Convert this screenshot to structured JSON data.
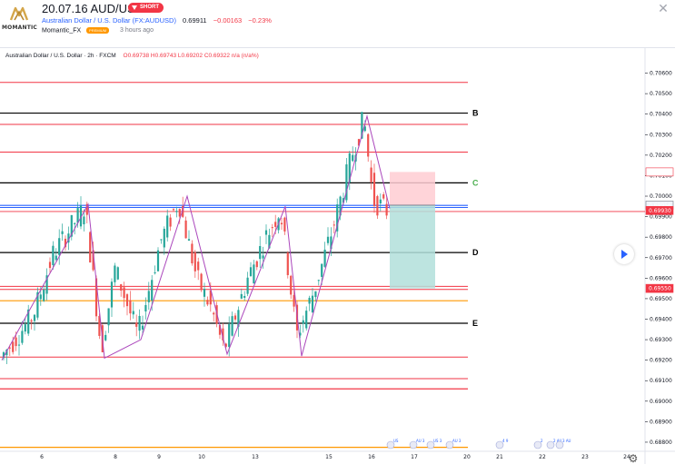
{
  "header": {
    "logo_text": "MOMANTIC",
    "title_date": "20.07.16",
    "title_symbol": "AUD/USD",
    "badge": "SHORT",
    "symbol_link": "Australian Dollar / U.S. Dollar (FX:AUDUSD)",
    "last_price": "0.69911",
    "change": "−0.00163",
    "change_pct": "−0.23%",
    "author": "Momantic_FX",
    "author_badge": "PREMIUM",
    "time_ago": "3 hours ago",
    "close_icon": "close-icon"
  },
  "chart": {
    "legend_title": "Australian Dollar / U.S. Dollar · 2h · FXCM",
    "legend_ohlc": "O0.69738  H0.69743  L0.69202  C0.69322  n/a (n/a%)",
    "colors": {
      "up": "#26a69a",
      "down": "#ef5350",
      "zigzag": "#ab47bc",
      "red_line": "#f23645",
      "orange_line": "#ff9800",
      "blue_line": "#2962ff",
      "black_line": "#000000",
      "level_c": "#4caf50",
      "target_fill": "#b2dfdb",
      "stop_fill": "#ffcdd2"
    },
    "price_axis": [
      "0.70600",
      "0.70500",
      "0.70400",
      "0.70300",
      "0.70200",
      "0.70100",
      "0.70000",
      "0.69900",
      "0.69800",
      "0.69700",
      "0.69600",
      "0.69500",
      "0.69400",
      "0.69300",
      "0.69200",
      "0.69100",
      "0.69000",
      "0.68900",
      "0.68800"
    ],
    "price_markers": [
      {
        "value": "0.70118",
        "style": "outline-red"
      },
      {
        "value": "0.69956",
        "style": "grey"
      },
      {
        "value": "0.69930",
        "style": "red"
      },
      {
        "value": "0.69550",
        "style": "red"
      }
    ],
    "time_axis": [
      "6",
      "8",
      "9",
      "10",
      "13",
      "15",
      "16",
      "17",
      "20",
      "21",
      "22",
      "23",
      "24"
    ],
    "levels": [
      {
        "label": "B",
        "color": "#000000"
      },
      {
        "label": "C",
        "color": "#4caf50"
      },
      {
        "label": "D",
        "color": "#000000"
      },
      {
        "label": "E",
        "color": "#000000"
      }
    ],
    "event_marks": [
      "US",
      "AU 3",
      "US 3",
      "AU 3",
      "4 9",
      "2",
      "2 AU",
      "3 AU"
    ],
    "play_icon": "play-icon",
    "settings_icon": "gear-icon"
  },
  "chart_data": {
    "type": "candlestick",
    "title": "Australian Dollar / U.S. Dollar · 2h · FXCM",
    "xlabel": "",
    "ylabel": "",
    "ylim": [
      0.6876,
      0.7066
    ],
    "x_ticks": [
      "6",
      "8",
      "9",
      "10",
      "13",
      "15",
      "16",
      "17",
      "20",
      "21",
      "22",
      "23",
      "24"
    ],
    "horizontal_levels": [
      {
        "name": "B",
        "value": 0.70405
      },
      {
        "name": "C",
        "value": 0.70065
      },
      {
        "name": "D",
        "value": 0.69725
      },
      {
        "name": "E",
        "value": 0.6938
      },
      {
        "name": "",
        "value": 0.70555
      },
      {
        "name": "",
        "value": 0.7035
      },
      {
        "name": "",
        "value": 0.70215
      },
      {
        "name": "",
        "value": 0.69955
      },
      {
        "name": "",
        "value": 0.69945
      },
      {
        "name": "",
        "value": 0.69925
      },
      {
        "name": "",
        "value": 0.6956
      },
      {
        "name": "",
        "value": 0.69545
      },
      {
        "name": "",
        "value": 0.6949
      },
      {
        "name": "",
        "value": 0.69215
      },
      {
        "name": "",
        "value": 0.6911
      },
      {
        "name": "",
        "value": 0.6906
      },
      {
        "name": "",
        "value": 0.68775
      }
    ],
    "position": {
      "side": "short",
      "entry": 0.69956,
      "stop": 0.70118,
      "target": 0.6955
    }
  }
}
